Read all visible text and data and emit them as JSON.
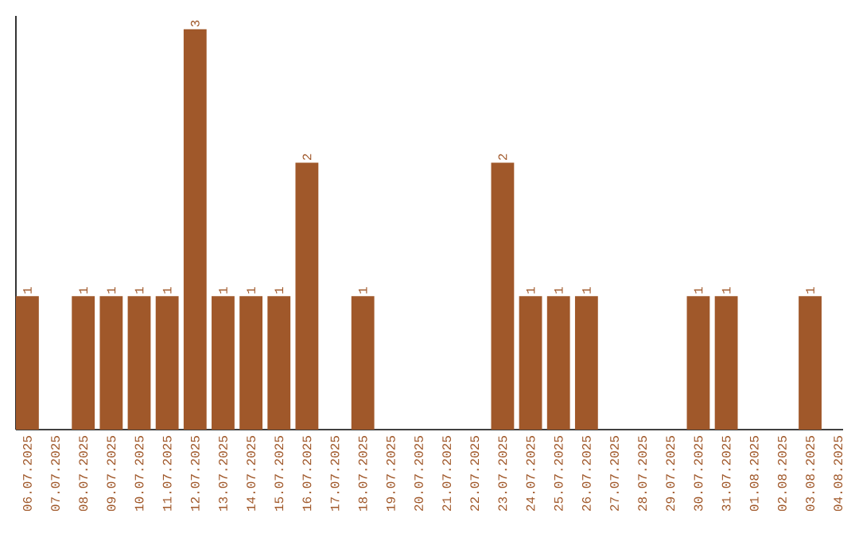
{
  "chart_data": {
    "type": "bar",
    "categories": [
      "06.07.2025",
      "07.07.2025",
      "08.07.2025",
      "09.07.2025",
      "10.07.2025",
      "11.07.2025",
      "12.07.2025",
      "13.07.2025",
      "14.07.2025",
      "15.07.2025",
      "16.07.2025",
      "17.07.2025",
      "18.07.2025",
      "19.07.2025",
      "20.07.2025",
      "21.07.2025",
      "22.07.2025",
      "23.07.2025",
      "24.07.2025",
      "25.07.2025",
      "26.07.2025",
      "27.07.2025",
      "28.07.2025",
      "29.07.2025",
      "30.07.2025",
      "31.07.2025",
      "01.08.2025",
      "02.08.2025",
      "03.08.2025",
      "04.08.2025"
    ],
    "values": [
      1,
      0,
      1,
      1,
      1,
      1,
      3,
      1,
      1,
      1,
      2,
      0,
      1,
      0,
      0,
      0,
      0,
      2,
      1,
      1,
      1,
      0,
      0,
      0,
      1,
      1,
      0,
      0,
      1,
      0
    ],
    "value_labels": [
      "1",
      null,
      "1",
      "1",
      "1",
      "1",
      "3",
      "1",
      "1",
      "1",
      "2",
      null,
      "1",
      null,
      null,
      null,
      null,
      "2",
      "1",
      "1",
      "1",
      null,
      null,
      null,
      "1",
      "1",
      null,
      null,
      "1",
      null
    ],
    "color": "#a0582a",
    "ylim": [
      0,
      3.1
    ],
    "tick_labels": "x"
  }
}
